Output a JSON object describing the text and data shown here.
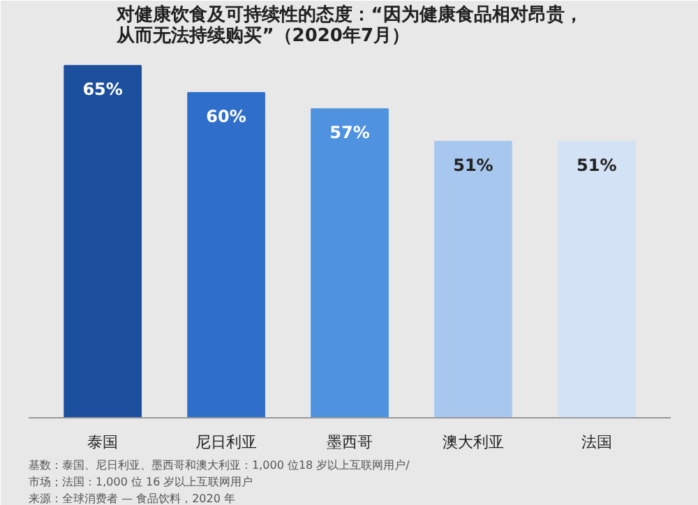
{
  "chart_data": {
    "type": "bar",
    "title": "对健康饮食及可持续性的态度：“因为健康食品相对昂贵，从而无法持续购买”（2020年7月）",
    "categories": [
      "泰国",
      "尼日利亚",
      "墨西哥",
      "澳大利亚",
      "法国"
    ],
    "values": [
      65,
      60,
      57,
      51,
      51
    ],
    "colors": [
      "#1c4f9e",
      "#2f6fcb",
      "#4e92e0",
      "#a8c7ee",
      "#d3e2f5"
    ],
    "value_labels": [
      "65%",
      "60%",
      "57%",
      "51%",
      "51%"
    ],
    "annotations": [
      "基数：泰国、尼日利亚、墨西哥和澳大利亚：1,000 位18 岁以上互联网用户/",
      "市场；法国：1,000 位 16 岁以上互联网用户",
      "来源：全球消费者 — 食品饮料，2020 年"
    ]
  }
}
